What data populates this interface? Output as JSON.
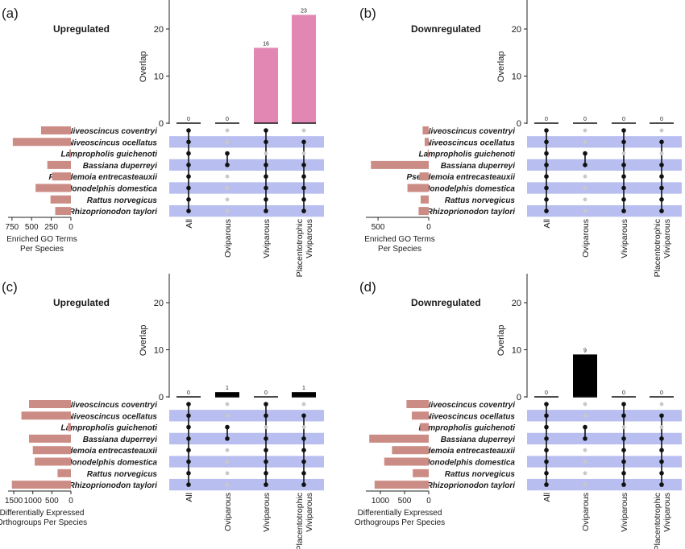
{
  "species": [
    "Niveoscincus coventryi",
    "Niveoscincus ocellatus",
    "Lampropholis guichenoti",
    "Bassiana duperreyi",
    "Pseudemoia entrecasteauxii",
    "Monodelphis domestica",
    "Rattus norvegicus",
    "Rhizoprionodon taylori"
  ],
  "sets": [
    "All",
    "Oviparous",
    "Viviparous",
    "Placentotrophic\nViviparous"
  ],
  "colors": {
    "go_bar": "#e287b4",
    "ortho_bar": "#000000",
    "species_bar": "#cc8c86",
    "band": "#b8bff0",
    "dot_on": "#111111",
    "dot_off": "#c8c8c8"
  },
  "chart_data": [
    {
      "panel": "(a)",
      "type": "bar",
      "title": "Upregulated",
      "ylabel": "Overlap",
      "ylim": [
        0,
        26
      ],
      "yticks": [
        0,
        10,
        20
      ],
      "bar_color": "#e287b4",
      "overlap": [
        0,
        0,
        16,
        23
      ],
      "overlap_labels": [
        "0",
        "0",
        "16",
        "23"
      ],
      "species_counts": [
        380,
        740,
        20,
        300,
        240,
        450,
        260,
        200
      ],
      "species_max": 800,
      "species_ticks": [
        750,
        500,
        250,
        0
      ],
      "xlabel": [
        "Enriched GO Terms",
        "Per Species"
      ]
    },
    {
      "panel": "(b)",
      "type": "bar",
      "title": "Downregulated",
      "ylabel": "Overlap",
      "ylim": [
        0,
        26
      ],
      "yticks": [
        0,
        10,
        20
      ],
      "bar_color": "#e287b4",
      "overlap": [
        0,
        0,
        0,
        0
      ],
      "overlap_labels": [
        "0",
        "0",
        "0",
        "0"
      ],
      "species_counts": [
        60,
        40,
        10,
        570,
        90,
        210,
        80,
        100
      ],
      "species_max": 620,
      "species_ticks": [
        500,
        0
      ],
      "xlabel": [
        "Enriched GO Terms",
        "Per Species"
      ]
    },
    {
      "panel": "(c)",
      "type": "bar",
      "title": "Upregulated",
      "ylabel": "Overlap",
      "ylim": [
        0,
        26
      ],
      "yticks": [
        0,
        10,
        20
      ],
      "bar_color": "#000000",
      "overlap": [
        0,
        1,
        0,
        1
      ],
      "overlap_labels": [
        "0",
        "1",
        "0",
        "1"
      ],
      "species_counts": [
        1100,
        1300,
        80,
        1100,
        1000,
        950,
        350,
        1550
      ],
      "species_max": 1650,
      "species_ticks": [
        1500,
        1000,
        500,
        0
      ],
      "xlabel": [
        "Differentially Expressed",
        "Orthogroups Per Species"
      ]
    },
    {
      "panel": "(d)",
      "type": "bar",
      "title": "Downregulated",
      "ylabel": "Overlap",
      "ylim": [
        0,
        26
      ],
      "yticks": [
        0,
        10,
        20
      ],
      "bar_color": "#000000",
      "overlap": [
        0,
        9,
        0,
        0
      ],
      "overlap_labels": [
        "0",
        "9",
        "0",
        "0"
      ],
      "species_counts": [
        460,
        350,
        180,
        1230,
        760,
        920,
        330,
        1120
      ],
      "species_max": 1300,
      "species_ticks": [
        1000,
        500,
        0
      ],
      "xlabel": [
        "Differentially Expressed",
        "Orthogroups Per Species"
      ]
    }
  ]
}
